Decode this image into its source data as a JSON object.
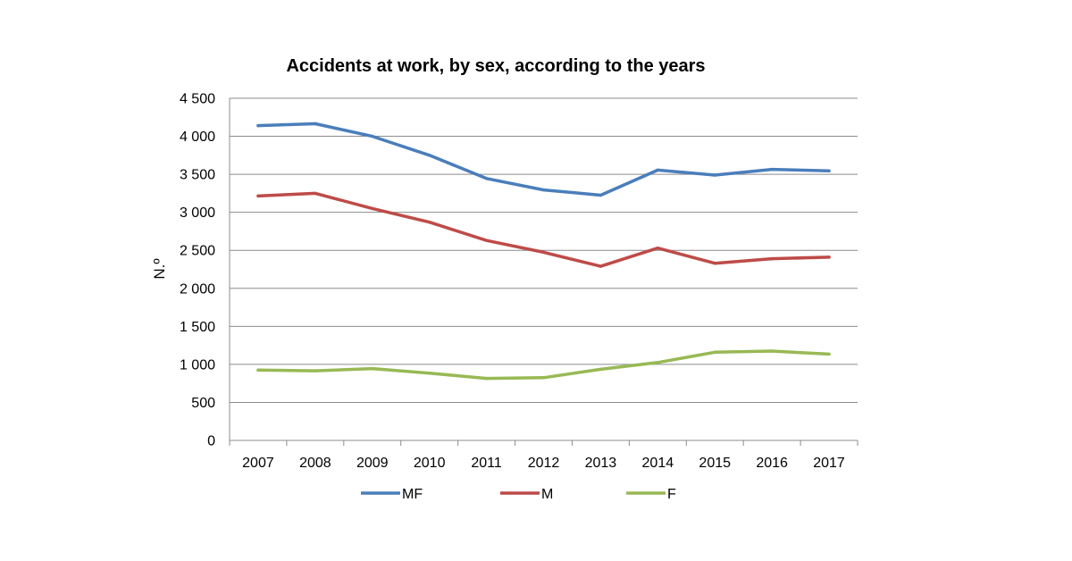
{
  "chart_data": {
    "type": "line",
    "title": "Accidents at work, by sex, according to the years",
    "xlabel": "",
    "ylabel": "N.º",
    "categories": [
      "2007",
      "2008",
      "2009",
      "2010",
      "2011",
      "2012",
      "2013",
      "2014",
      "2015",
      "2016",
      "2017"
    ],
    "ylim": [
      0,
      4500
    ],
    "y_ticks": [
      0,
      500,
      1000,
      1500,
      2000,
      2500,
      3000,
      3500,
      4000,
      4500
    ],
    "y_tick_labels": [
      "0",
      "500",
      "1 000",
      "1 500",
      "2 000",
      "2 500",
      "3 000",
      "3 500",
      "4 000",
      "4 500"
    ],
    "grid": true,
    "legend_position": "bottom",
    "series": [
      {
        "name": "MF",
        "color": "#4a7ebb",
        "values": [
          4140,
          4165,
          4000,
          3750,
          3445,
          3295,
          3225,
          3555,
          3490,
          3565,
          3545
        ]
      },
      {
        "name": "M",
        "color": "#be4b48",
        "values": [
          3215,
          3250,
          3050,
          2870,
          2630,
          2475,
          2290,
          2530,
          2330,
          2390,
          2410
        ]
      },
      {
        "name": "F",
        "color": "#98b954",
        "values": [
          925,
          915,
          945,
          885,
          815,
          825,
          935,
          1025,
          1160,
          1175,
          1135
        ]
      }
    ]
  }
}
